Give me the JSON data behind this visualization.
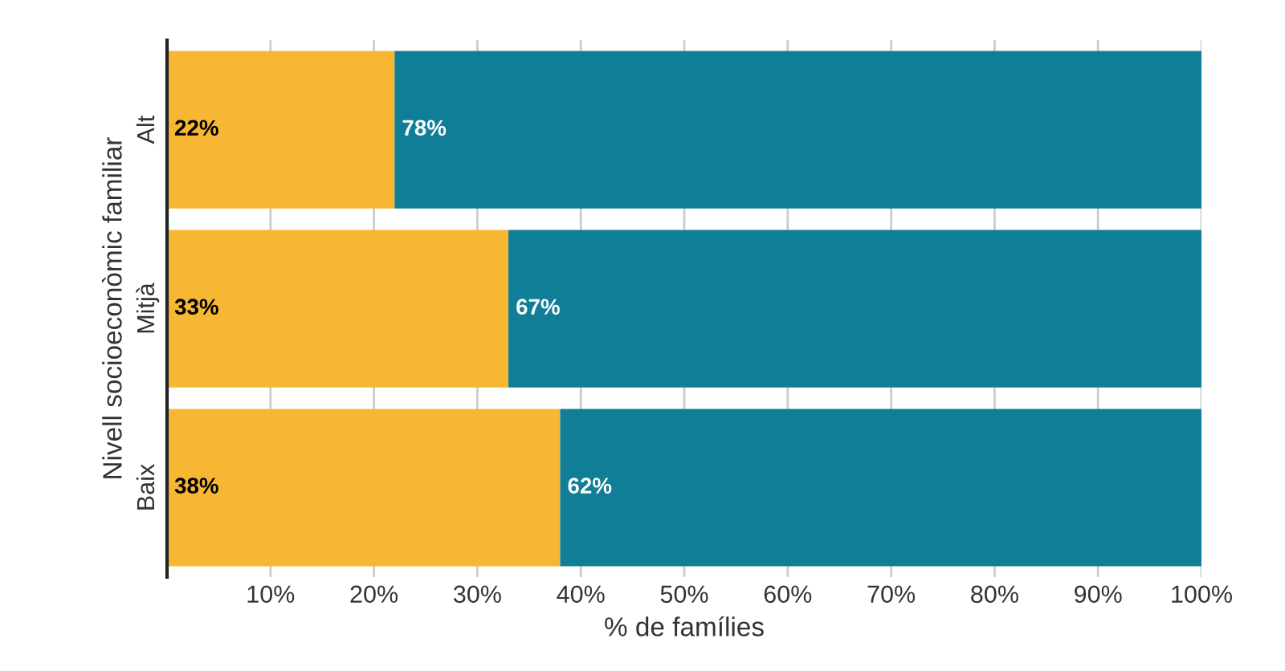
{
  "chart_data": {
    "type": "bar",
    "orientation": "horizontal",
    "stacked": true,
    "ylabel": "Nivell socioeconòmic familiar",
    "xlabel": "% de famílies",
    "categories": [
      "Alt",
      "Mitjà",
      "Baix"
    ],
    "series": [
      {
        "color": "#f7b733",
        "values": [
          22,
          33,
          38
        ],
        "value_labels": [
          "22%",
          "33%",
          "38%"
        ]
      },
      {
        "color": "#0f7e96",
        "values": [
          78,
          67,
          62
        ],
        "value_labels": [
          "78%",
          "67%",
          "62%"
        ]
      }
    ],
    "xlim": [
      0,
      100
    ],
    "xticks": [
      {
        "value": 10,
        "label": "10%"
      },
      {
        "value": 20,
        "label": "20%"
      },
      {
        "value": 30,
        "label": "30%"
      },
      {
        "value": 40,
        "label": "40%"
      },
      {
        "value": 50,
        "label": "50%"
      },
      {
        "value": 60,
        "label": "60%"
      },
      {
        "value": 70,
        "label": "70%"
      },
      {
        "value": 80,
        "label": "80%"
      },
      {
        "value": 90,
        "label": "90%"
      },
      {
        "value": 100,
        "label": "100%"
      }
    ],
    "grid": "x",
    "legend": false
  }
}
